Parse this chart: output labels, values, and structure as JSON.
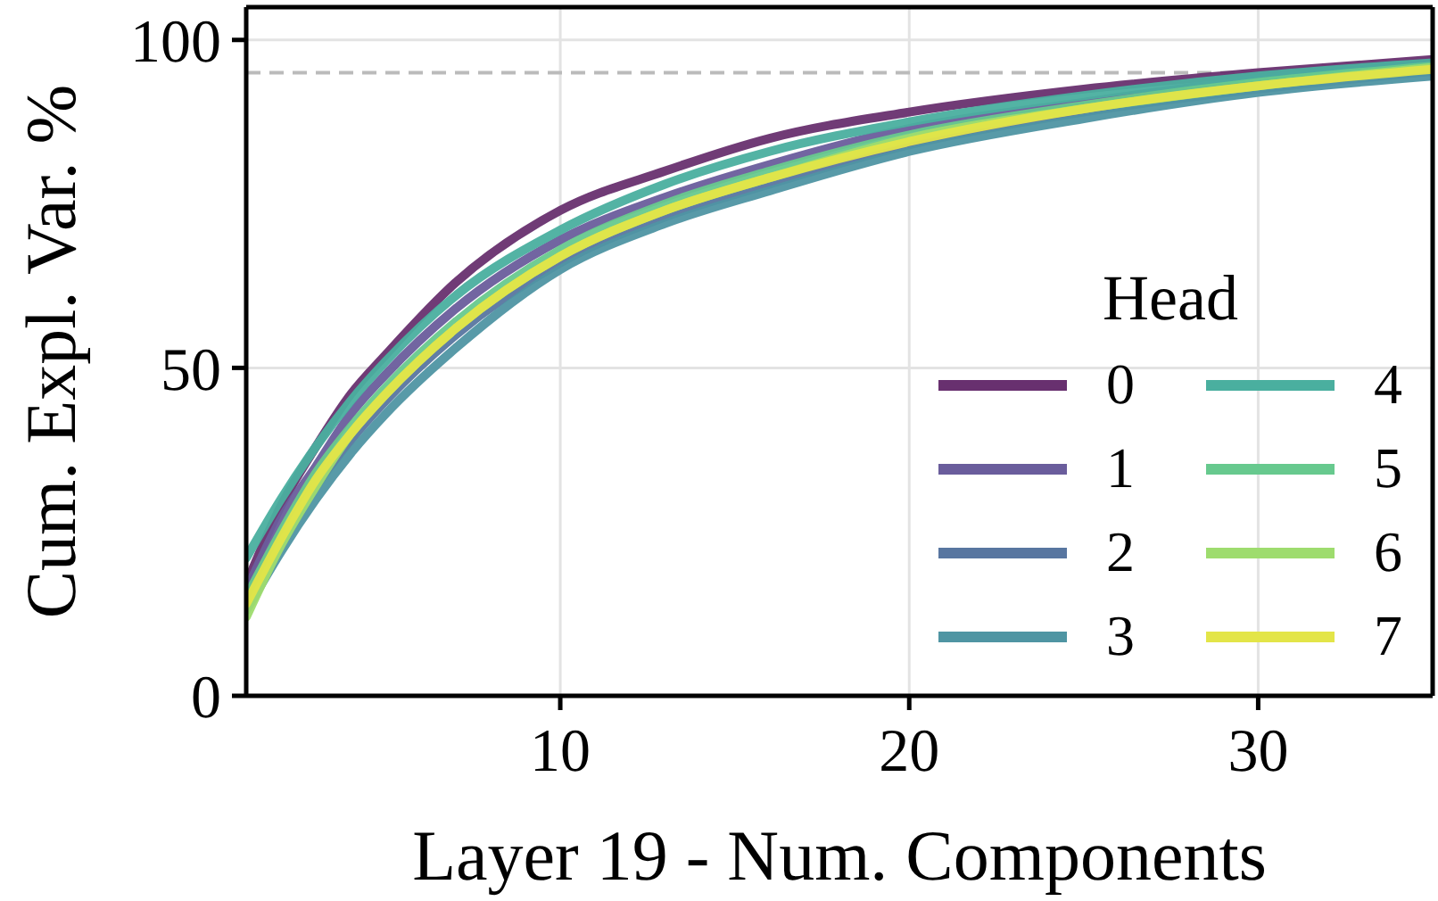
{
  "chart_data": {
    "type": "line",
    "xlabel": "Layer 19 - Num. Components",
    "ylabel": "Cum. Expl. Var. %",
    "legend_title": "Head",
    "legend": "bottom right",
    "grid": true,
    "line_style": "solid",
    "marker": "none",
    "x": [
      1,
      2,
      3,
      4,
      5,
      7,
      10,
      13,
      16,
      20,
      25,
      30,
      35
    ],
    "xlim": [
      1,
      35
    ],
    "xticks": [
      10,
      20,
      30
    ],
    "ylim": [
      0,
      105
    ],
    "yticks": [
      0,
      50,
      100
    ],
    "ref_lines": [
      {
        "axis": "y",
        "value": 95,
        "color": "#bbbbbb",
        "line_style": "dashed"
      }
    ],
    "series": [
      {
        "name": "0",
        "color": "#68306f",
        "values": [
          17,
          29,
          38,
          46,
          52,
          63,
          74,
          80,
          85,
          89,
          92.5,
          95,
          97
        ]
      },
      {
        "name": "1",
        "color": "#6a5d9c",
        "values": [
          16,
          27,
          35,
          43,
          49,
          59,
          69.5,
          76,
          81,
          86.5,
          90.5,
          94,
          96
        ]
      },
      {
        "name": "2",
        "color": "#5876a0",
        "values": [
          14,
          24,
          32,
          39,
          45,
          55,
          66,
          73,
          78,
          84,
          89,
          92.5,
          95.2
        ]
      },
      {
        "name": "3",
        "color": "#4f95a3",
        "values": [
          13,
          22,
          30,
          37,
          43,
          53,
          65,
          72,
          77,
          83,
          88,
          92,
          94.5
        ]
      },
      {
        "name": "4",
        "color": "#4aaf9f",
        "values": [
          21,
          30,
          38,
          45,
          51,
          61,
          71,
          78,
          83,
          87.5,
          91.5,
          94.5,
          96.5
        ]
      },
      {
        "name": "5",
        "color": "#67c98e",
        "values": [
          15,
          25,
          34,
          41,
          47,
          57,
          68,
          75,
          80,
          85.5,
          90,
          93.5,
          96
        ]
      },
      {
        "name": "6",
        "color": "#9edc6e",
        "values": [
          12,
          23,
          32,
          40,
          46,
          56,
          67,
          74,
          79,
          85,
          89.5,
          93,
          95.8
        ]
      },
      {
        "name": "7",
        "color": "#e3e548",
        "values": [
          14,
          24,
          33,
          40,
          46,
          56,
          67,
          74,
          79,
          84.5,
          89.5,
          93,
          95.5
        ]
      }
    ]
  }
}
